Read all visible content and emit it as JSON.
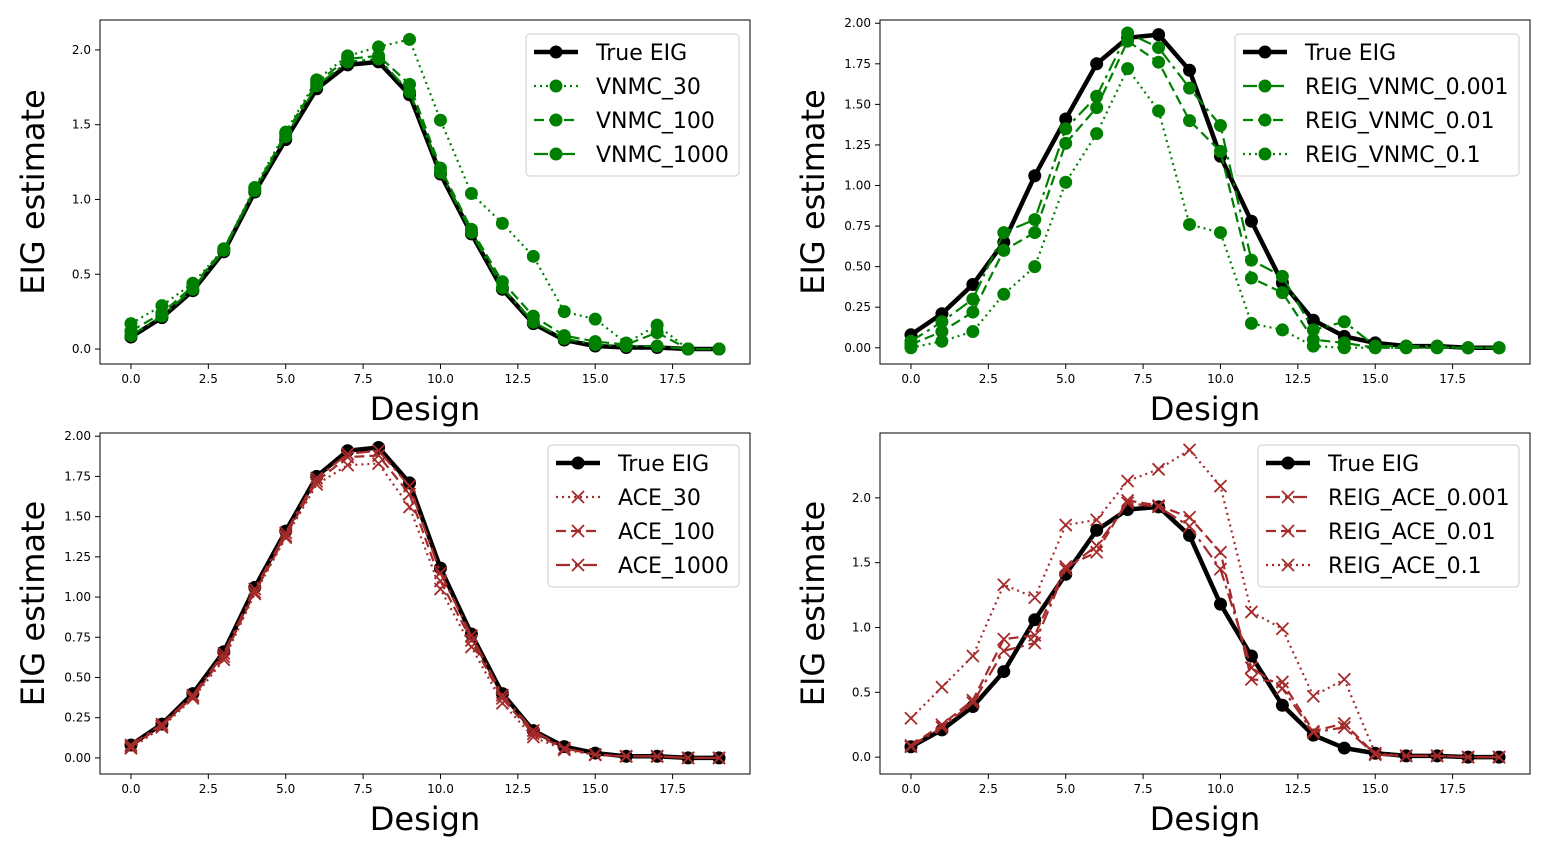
{
  "chart_data": [
    {
      "type": "line",
      "xlabel": "Design",
      "ylabel": "EIG estimate",
      "xlim": [
        -1,
        20
      ],
      "ylim": [
        -0.1,
        2.2
      ],
      "xticks": [
        0.0,
        2.5,
        5.0,
        7.5,
        10.0,
        12.5,
        15.0,
        17.5
      ],
      "xtick_labels": [
        "0.0",
        "2.5",
        "5.0",
        "7.5",
        "10.0",
        "12.5",
        "15.0",
        "17.5"
      ],
      "yticks": [
        0.0,
        0.5,
        1.0,
        1.5,
        2.0
      ],
      "ytick_labels": [
        "0.0",
        "0.5",
        "1.0",
        "1.5",
        "2.0"
      ],
      "legend_position": "top-right",
      "x": [
        0,
        1,
        2,
        3,
        4,
        5,
        6,
        7,
        8,
        9,
        10,
        11,
        12,
        13,
        14,
        15,
        16,
        17,
        18,
        19
      ],
      "series": [
        {
          "name": "True EIG",
          "color": "#000000",
          "style": "solid",
          "marker": "circle",
          "values": [
            0.08,
            0.21,
            0.39,
            0.65,
            1.05,
            1.4,
            1.74,
            1.9,
            1.92,
            1.7,
            1.17,
            0.77,
            0.4,
            0.17,
            0.06,
            0.02,
            0.01,
            0.01,
            0.0,
            0.0
          ]
        },
        {
          "name": "VNMC_30",
          "color": "#008000",
          "style": "dotted",
          "marker": "circle",
          "values": [
            0.17,
            0.29,
            0.44,
            0.67,
            1.08,
            1.45,
            1.8,
            1.96,
            2.02,
            2.07,
            1.53,
            1.04,
            0.84,
            0.62,
            0.25,
            0.2,
            0.04,
            0.16,
            0.0,
            0.0
          ]
        },
        {
          "name": "VNMC_100",
          "color": "#008000",
          "style": "dashed",
          "marker": "circle",
          "values": [
            0.12,
            0.24,
            0.42,
            0.67,
            1.07,
            1.44,
            1.78,
            1.94,
            1.96,
            1.77,
            1.21,
            0.8,
            0.45,
            0.22,
            0.09,
            0.05,
            0.03,
            0.11,
            0.0,
            0.0
          ]
        },
        {
          "name": "VNMC_1000",
          "color": "#008000",
          "style": "dashdot",
          "marker": "circle",
          "values": [
            0.09,
            0.22,
            0.4,
            0.66,
            1.06,
            1.42,
            1.76,
            1.92,
            1.94,
            1.72,
            1.18,
            0.78,
            0.41,
            0.18,
            0.07,
            0.03,
            0.02,
            0.02,
            0.0,
            0.0
          ]
        }
      ]
    },
    {
      "type": "line",
      "xlabel": "Design",
      "ylabel": "EIG estimate",
      "xlim": [
        -1,
        20
      ],
      "ylim": [
        -0.1,
        2.02
      ],
      "xticks": [
        0.0,
        2.5,
        5.0,
        7.5,
        10.0,
        12.5,
        15.0,
        17.5
      ],
      "xtick_labels": [
        "0.0",
        "2.5",
        "5.0",
        "7.5",
        "10.0",
        "12.5",
        "15.0",
        "17.5"
      ],
      "yticks": [
        0.0,
        0.25,
        0.5,
        0.75,
        1.0,
        1.25,
        1.5,
        1.75,
        2.0
      ],
      "ytick_labels": [
        "0.00",
        "0.25",
        "0.50",
        "0.75",
        "1.00",
        "1.25",
        "1.50",
        "1.75",
        "2.00"
      ],
      "legend_position": "top-right",
      "x": [
        0,
        1,
        2,
        3,
        4,
        5,
        6,
        7,
        8,
        9,
        10,
        11,
        12,
        13,
        14,
        15,
        16,
        17,
        18,
        19
      ],
      "series": [
        {
          "name": "True EIG",
          "color": "#000000",
          "style": "solid",
          "marker": "circle",
          "values": [
            0.08,
            0.21,
            0.39,
            0.65,
            1.06,
            1.41,
            1.75,
            1.91,
            1.93,
            1.71,
            1.18,
            0.78,
            0.4,
            0.17,
            0.07,
            0.03,
            0.01,
            0.01,
            0.0,
            0.0
          ]
        },
        {
          "name": "REIG_VNMC_0.001",
          "color": "#008000",
          "style": "dashdot",
          "marker": "circle",
          "values": [
            0.04,
            0.16,
            0.3,
            0.71,
            0.79,
            1.35,
            1.55,
            1.94,
            1.85,
            1.6,
            1.37,
            0.54,
            0.44,
            0.11,
            0.16,
            0.01,
            0.01,
            0.01,
            0.0,
            0.0
          ]
        },
        {
          "name": "REIG_VNMC_0.01",
          "color": "#008000",
          "style": "dashed",
          "marker": "circle",
          "values": [
            0.02,
            0.1,
            0.22,
            0.6,
            0.71,
            1.26,
            1.48,
            1.89,
            1.76,
            1.4,
            1.21,
            0.43,
            0.34,
            0.05,
            0.03,
            0.0,
            0.0,
            0.0,
            0.0,
            0.0
          ]
        },
        {
          "name": "REIG_VNMC_0.1",
          "color": "#008000",
          "style": "dotted",
          "marker": "circle",
          "values": [
            0.0,
            0.04,
            0.1,
            0.33,
            0.5,
            1.02,
            1.32,
            1.72,
            1.46,
            0.76,
            0.71,
            0.15,
            0.11,
            0.01,
            0.0,
            0.0,
            0.0,
            0.0,
            0.0,
            0.0
          ]
        }
      ]
    },
    {
      "type": "line",
      "xlabel": "Design",
      "ylabel": "EIG estimate",
      "xlim": [
        -1,
        20
      ],
      "ylim": [
        -0.1,
        2.02
      ],
      "xticks": [
        0.0,
        2.5,
        5.0,
        7.5,
        10.0,
        12.5,
        15.0,
        17.5
      ],
      "xtick_labels": [
        "0.0",
        "2.5",
        "5.0",
        "7.5",
        "10.0",
        "12.5",
        "15.0",
        "17.5"
      ],
      "yticks": [
        0.0,
        0.25,
        0.5,
        0.75,
        1.0,
        1.25,
        1.5,
        1.75,
        2.0
      ],
      "ytick_labels": [
        "0.00",
        "0.25",
        "0.50",
        "0.75",
        "1.00",
        "1.25",
        "1.50",
        "1.75",
        "2.00"
      ],
      "legend_position": "top-right",
      "x": [
        0,
        1,
        2,
        3,
        4,
        5,
        6,
        7,
        8,
        9,
        10,
        11,
        12,
        13,
        14,
        15,
        16,
        17,
        18,
        19
      ],
      "series": [
        {
          "name": "True EIG",
          "color": "#000000",
          "style": "solid",
          "marker": "circle",
          "values": [
            0.08,
            0.21,
            0.4,
            0.66,
            1.06,
            1.41,
            1.75,
            1.91,
            1.93,
            1.71,
            1.18,
            0.77,
            0.4,
            0.17,
            0.07,
            0.03,
            0.01,
            0.01,
            0.0,
            0.0
          ]
        },
        {
          "name": "ACE_30",
          "color": "#a52a2a",
          "style": "dotted",
          "marker": "x",
          "values": [
            0.06,
            0.19,
            0.37,
            0.61,
            1.02,
            1.37,
            1.7,
            1.82,
            1.83,
            1.56,
            1.05,
            0.69,
            0.34,
            0.13,
            0.05,
            0.02,
            0.01,
            0.01,
            0.0,
            0.0
          ]
        },
        {
          "name": "ACE_100",
          "color": "#a52a2a",
          "style": "dashed",
          "marker": "x",
          "values": [
            0.07,
            0.2,
            0.38,
            0.63,
            1.03,
            1.38,
            1.72,
            1.87,
            1.88,
            1.64,
            1.1,
            0.73,
            0.37,
            0.15,
            0.06,
            0.02,
            0.01,
            0.01,
            0.0,
            0.0
          ]
        },
        {
          "name": "ACE_1000",
          "color": "#a52a2a",
          "style": "dashdot",
          "marker": "x",
          "values": [
            0.08,
            0.21,
            0.39,
            0.65,
            1.05,
            1.4,
            1.74,
            1.89,
            1.91,
            1.69,
            1.15,
            0.76,
            0.39,
            0.17,
            0.06,
            0.02,
            0.01,
            0.01,
            0.0,
            0.0
          ]
        }
      ]
    },
    {
      "type": "line",
      "xlabel": "Design",
      "ylabel": "EIG estimate",
      "xlim": [
        -1,
        20
      ],
      "ylim": [
        -0.13,
        2.5
      ],
      "xticks": [
        0.0,
        2.5,
        5.0,
        7.5,
        10.0,
        12.5,
        15.0,
        17.5
      ],
      "xtick_labels": [
        "0.0",
        "2.5",
        "5.0",
        "7.5",
        "10.0",
        "12.5",
        "15.0",
        "17.5"
      ],
      "yticks": [
        0.0,
        0.5,
        1.0,
        1.5,
        2.0
      ],
      "ytick_labels": [
        "0.0",
        "0.5",
        "1.0",
        "1.5",
        "2.0"
      ],
      "legend_position": "top-right",
      "x": [
        0,
        1,
        2,
        3,
        4,
        5,
        6,
        7,
        8,
        9,
        10,
        11,
        12,
        13,
        14,
        15,
        16,
        17,
        18,
        19
      ],
      "series": [
        {
          "name": "True EIG",
          "color": "#000000",
          "style": "solid",
          "marker": "circle",
          "values": [
            0.08,
            0.21,
            0.39,
            0.66,
            1.06,
            1.41,
            1.75,
            1.91,
            1.93,
            1.71,
            1.18,
            0.78,
            0.4,
            0.17,
            0.07,
            0.03,
            0.01,
            0.01,
            0.0,
            0.0
          ]
        },
        {
          "name": "REIG_ACE_0.001",
          "color": "#a52a2a",
          "style": "dashdot",
          "marker": "x",
          "values": [
            0.08,
            0.23,
            0.42,
            0.82,
            0.88,
            1.45,
            1.63,
            1.96,
            1.93,
            1.78,
            1.45,
            0.69,
            0.53,
            0.19,
            0.23,
            0.02,
            0.01,
            0.01,
            0.0,
            0.0
          ]
        },
        {
          "name": "REIG_ACE_0.01",
          "color": "#a52a2a",
          "style": "dashed",
          "marker": "x",
          "values": [
            0.09,
            0.25,
            0.44,
            0.91,
            0.94,
            1.47,
            1.58,
            1.98,
            1.94,
            1.85,
            1.58,
            0.6,
            0.58,
            0.2,
            0.26,
            0.02,
            0.01,
            0.01,
            0.0,
            0.0
          ]
        },
        {
          "name": "REIG_ACE_0.1",
          "color": "#a52a2a",
          "style": "dotted",
          "marker": "x",
          "values": [
            0.3,
            0.54,
            0.78,
            1.33,
            1.23,
            1.79,
            1.83,
            2.13,
            2.22,
            2.37,
            2.09,
            1.12,
            0.99,
            0.47,
            0.6,
            0.03,
            0.01,
            0.01,
            0.0,
            0.0
          ]
        }
      ]
    }
  ]
}
